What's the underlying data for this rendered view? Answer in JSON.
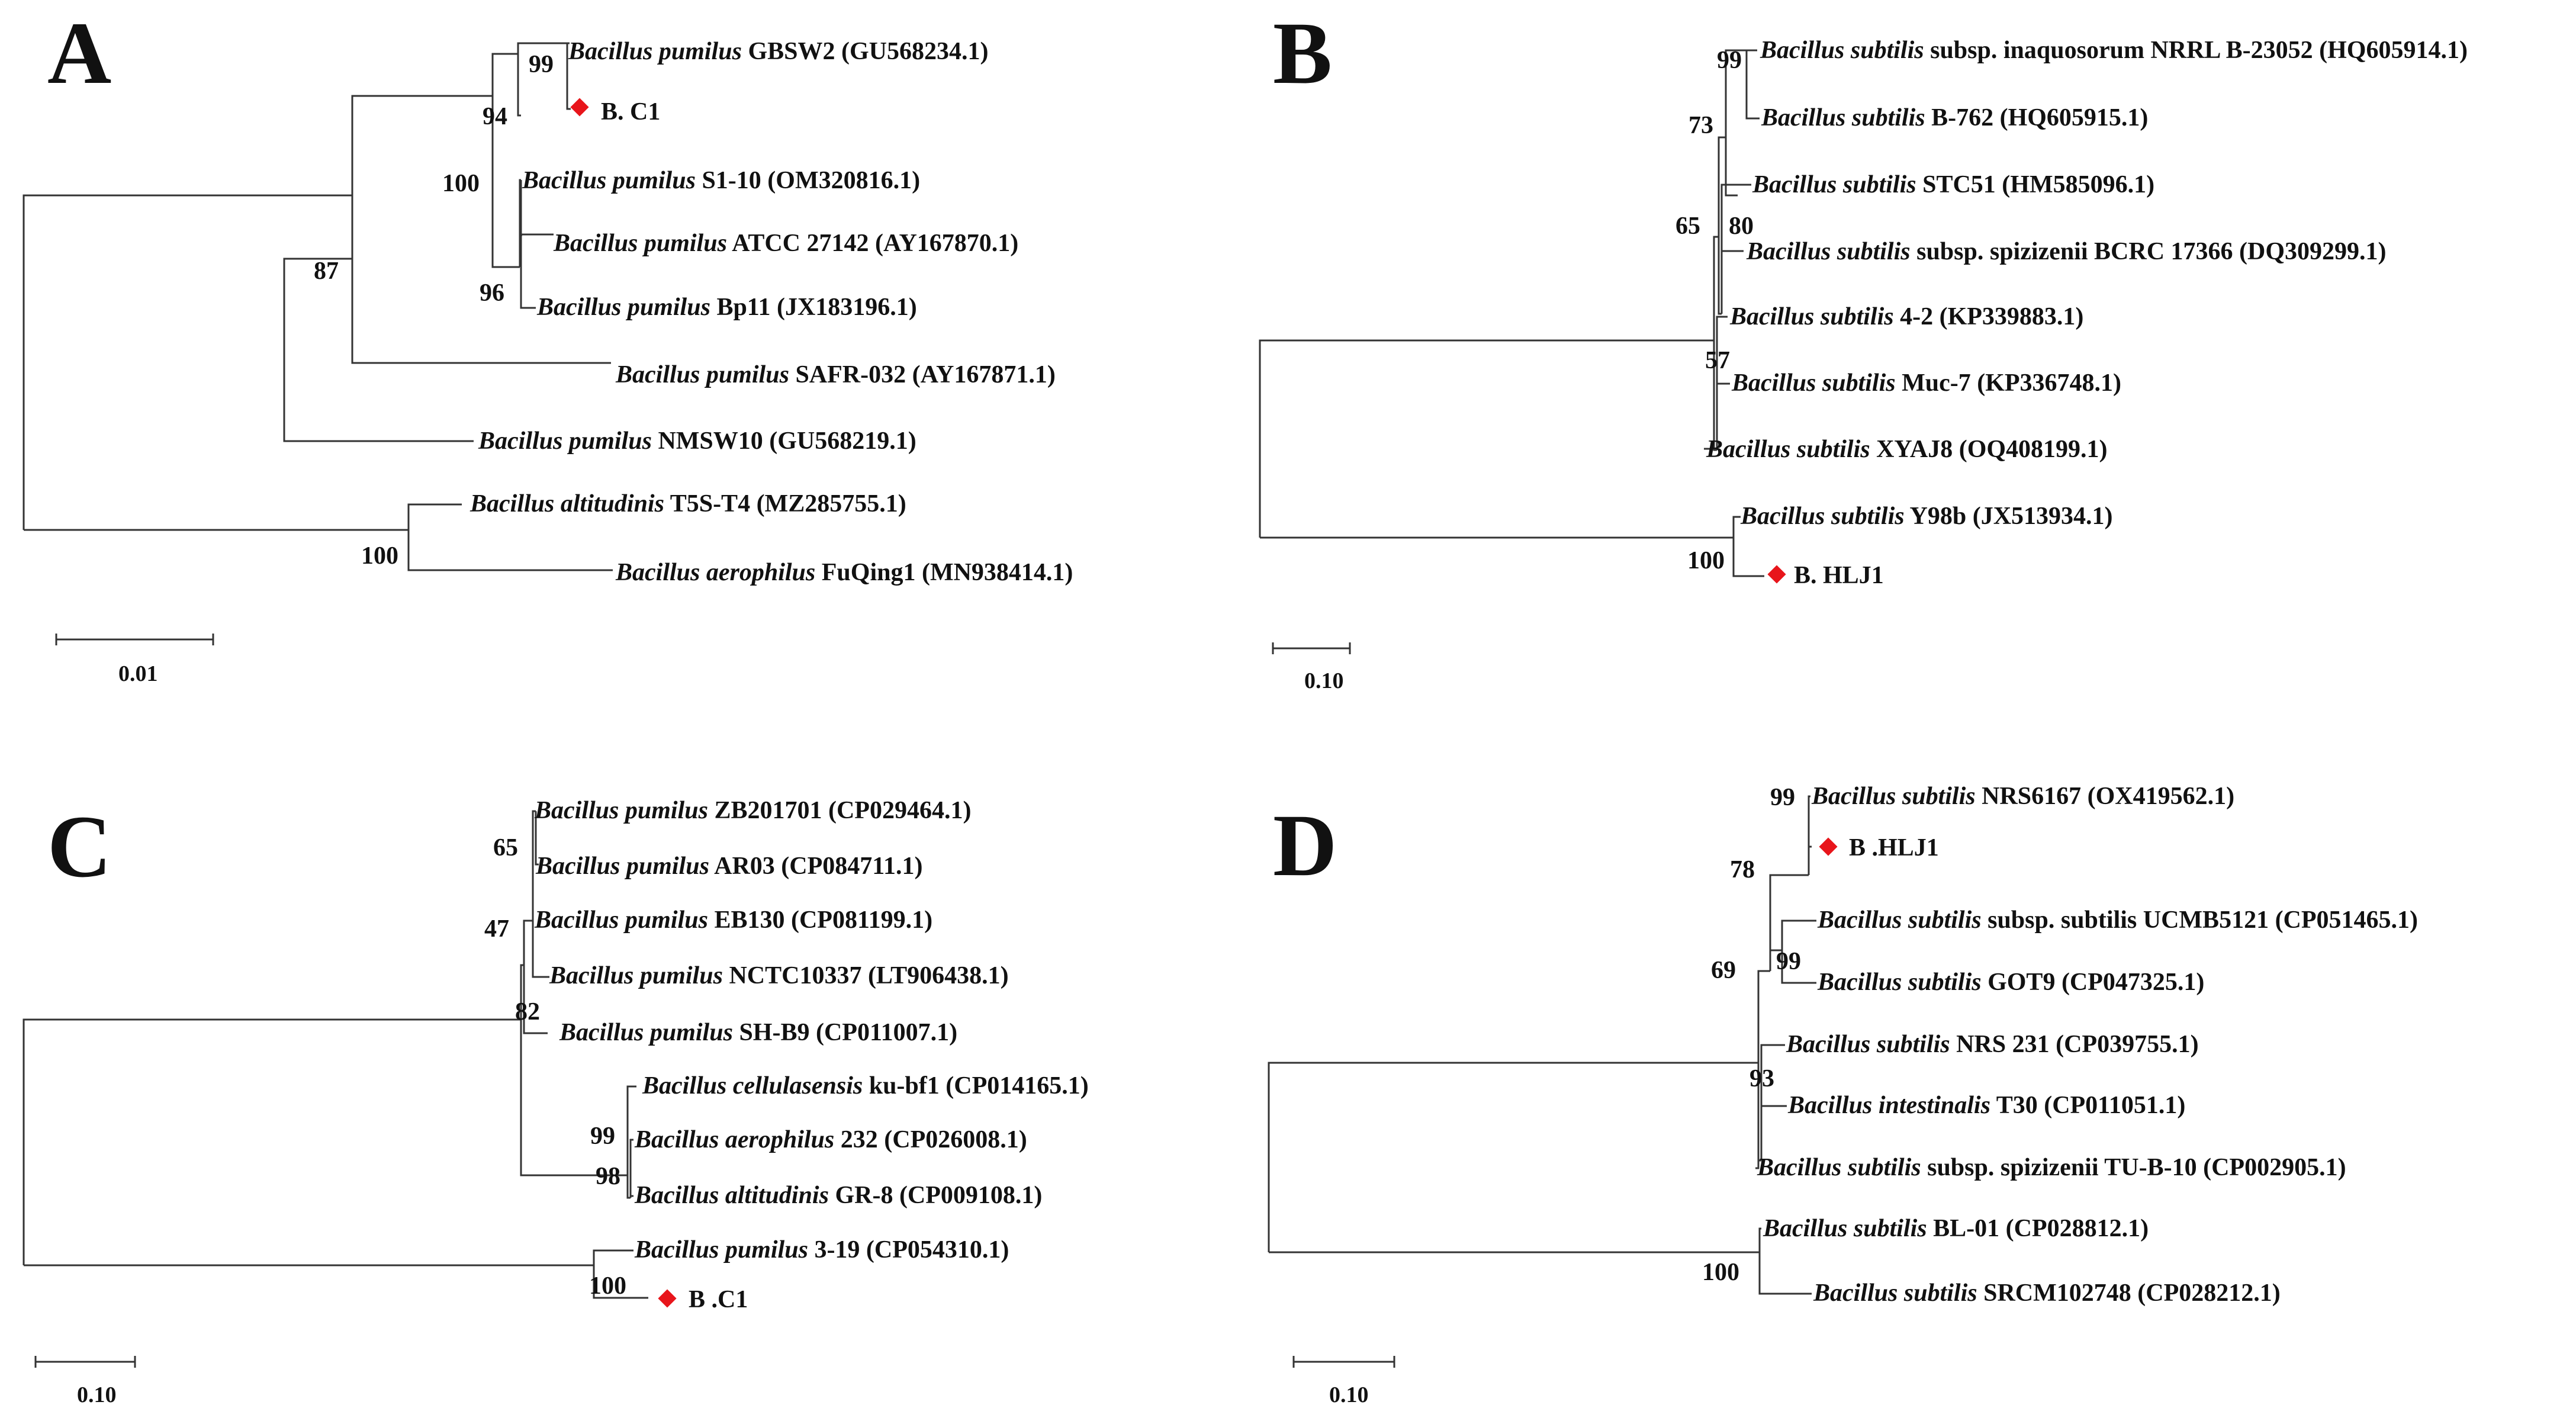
{
  "colors": {
    "marker": "#e8151b",
    "line": "#333333",
    "text": "#111111"
  },
  "panels": [
    {
      "id": "A",
      "letter": "A",
      "scale_label": "0.01",
      "leaves": [
        {
          "genus": "Bacillus pumilus",
          "rest": "GBSW2 (GU568234.1)"
        },
        {
          "genus": "",
          "rest": "B. C1",
          "marker": true
        },
        {
          "genus": "Bacillus pumilus",
          "rest": "S1-10 (OM320816.1)"
        },
        {
          "genus": "Bacillus pumilus",
          "rest": "ATCC 27142 (AY167870.1)"
        },
        {
          "genus": "Bacillus pumilus",
          "rest": "Bp11 (JX183196.1)"
        },
        {
          "genus": "Bacillus pumilus",
          "rest": "SAFR-032 (AY167871.1)"
        },
        {
          "genus": "Bacillus pumilus",
          "rest": "NMSW10 (GU568219.1)"
        },
        {
          "genus": "Bacillus altitudinis",
          "rest": "T5S-T4 (MZ285755.1)"
        },
        {
          "genus": "Bacillus aerophilus",
          "rest": "FuQing1 (MN938414.1)"
        }
      ],
      "bootstraps": [
        "99",
        "94",
        "100",
        "87",
        "96",
        "100"
      ]
    },
    {
      "id": "B",
      "letter": "B",
      "scale_label": "0.10",
      "leaves": [
        {
          "genus": "Bacillus subtilis",
          "rest": "subsp. inaquosorum NRRL B-23052 (HQ605914.1)"
        },
        {
          "genus": "Bacillus subtilis",
          "rest": "B-762 (HQ605915.1)"
        },
        {
          "genus": "Bacillus subtilis",
          "rest": "STC51 (HM585096.1)"
        },
        {
          "genus": "Bacillus subtilis",
          "rest": "subsp. spizizenii  BCRC 17366 (DQ309299.1)"
        },
        {
          "genus": "Bacillus subtilis",
          "rest": "4-2 (KP339883.1)"
        },
        {
          "genus": "Bacillus subtilis",
          "rest": "Muc-7 (KP336748.1)"
        },
        {
          "genus": "Bacillus subtilis",
          "rest": "XYAJ8  (OQ408199.1)"
        },
        {
          "genus": "Bacillus subtilis",
          "rest": "Y98b (JX513934.1)"
        },
        {
          "genus": "",
          "rest": "B. HLJ1",
          "marker": true
        }
      ],
      "bootstraps": [
        "99",
        "73",
        "80",
        "65",
        "57",
        "100"
      ]
    },
    {
      "id": "C",
      "letter": "C",
      "scale_label": "0.10",
      "leaves": [
        {
          "genus": "Bacillus pumilus",
          "rest": "ZB201701 (CP029464.1)"
        },
        {
          "genus": "Bacillus pumilus",
          "rest": "AR03 (CP084711.1)"
        },
        {
          "genus": "Bacillus pumilus",
          "rest": "EB130 (CP081199.1)"
        },
        {
          "genus": "Bacillus pumilus",
          "rest": "NCTC10337 (LT906438.1)"
        },
        {
          "genus": "Bacillus pumilus",
          "rest": "SH-B9 (CP011007.1)"
        },
        {
          "genus": "Bacillus cellulasensis",
          "rest": "ku-bf1 (CP014165.1)"
        },
        {
          "genus": "Bacillus aerophilus",
          "rest": "232 (CP026008.1)"
        },
        {
          "genus": "Bacillus altitudinis",
          "rest": "GR-8 (CP009108.1)"
        },
        {
          "genus": "Bacillus pumilus",
          "rest": "3-19 (CP054310.1)"
        },
        {
          "genus": "",
          "rest": "B .C1",
          "marker": true
        }
      ],
      "bootstraps": [
        "65",
        "47",
        "82",
        "99",
        "98",
        "100"
      ]
    },
    {
      "id": "D",
      "letter": "D",
      "scale_label": "0.10",
      "leaves": [
        {
          "genus": "Bacillus subtilis",
          "rest": "NRS6167 (OX419562.1)"
        },
        {
          "genus": "",
          "rest": "B .HLJ1",
          "marker": true
        },
        {
          "genus": "Bacillus subtilis",
          "rest": "subsp. subtilis UCMB5121 (CP051465.1)"
        },
        {
          "genus": "Bacillus subtilis",
          "rest": "GOT9 (CP047325.1)"
        },
        {
          "genus": "Bacillus subtilis",
          "rest": "NRS 231 (CP039755.1)"
        },
        {
          "genus": "Bacillus intestinalis",
          "rest": "T30 (CP011051.1)"
        },
        {
          "genus": "Bacillus subtilis",
          "rest": "subsp. spizizenii  TU-B-10 (CP002905.1)"
        },
        {
          "genus": "Bacillus subtilis",
          "rest": "BL-01 (CP028812.1)"
        },
        {
          "genus": "Bacillus subtilis",
          "rest": "SRCM102748 (CP028212.1)"
        }
      ],
      "bootstraps": [
        "99",
        "78",
        "99",
        "69",
        "93",
        "100"
      ]
    }
  ]
}
